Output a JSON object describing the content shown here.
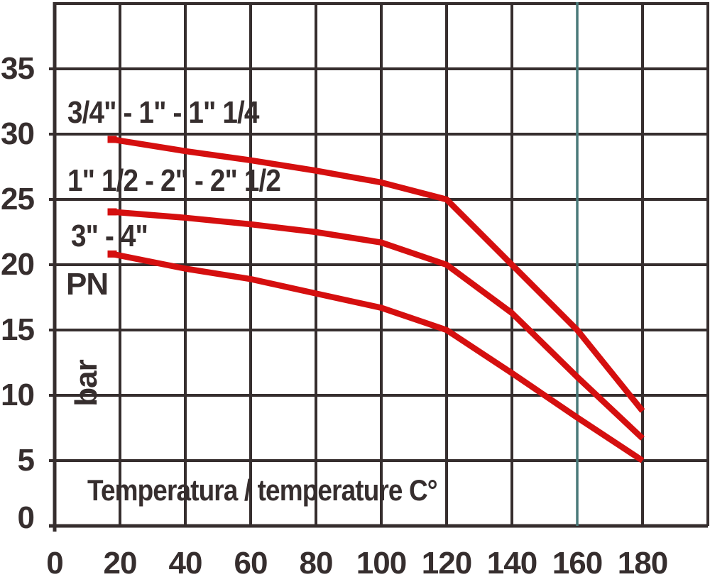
{
  "chart_data": {
    "type": "line",
    "title": "",
    "xlabel": "Temperatura / temperature C°",
    "ylabel": "PN",
    "y_unit": "bar",
    "xlim": [
      0,
      200
    ],
    "ylim": [
      0,
      40
    ],
    "x_ticks": [
      0,
      20,
      40,
      60,
      80,
      100,
      120,
      140,
      160,
      180
    ],
    "y_ticks": [
      0,
      5,
      10,
      15,
      20,
      25,
      30,
      35
    ],
    "grid": true,
    "legend_position": "inline-left-of-curves",
    "highlight_gridline": {
      "axis": "x",
      "value": 160,
      "color": "#4a7a7a"
    },
    "line_color": "#d50f0f",
    "grid_color": "#362e2e",
    "text_color": "#362e2e",
    "background": "#ffffff",
    "x": [
      20,
      40,
      60,
      80,
      100,
      120,
      140,
      160,
      180
    ],
    "series": [
      {
        "name": "3/4\" - 1\" - 1\" 1/4",
        "values": [
          29.5,
          28.7,
          28.0,
          27.2,
          26.3,
          25.0,
          20.0,
          15.0,
          8.8
        ]
      },
      {
        "name": "1\" 1/2 - 2\" - 2\" 1/2",
        "values": [
          24.0,
          23.6,
          23.1,
          22.5,
          21.7,
          20.0,
          16.3,
          11.4,
          6.7
        ]
      },
      {
        "name": "3\" - 4\"",
        "values": [
          20.7,
          19.7,
          18.9,
          17.8,
          16.7,
          15.0,
          11.7,
          8.3,
          5.0
        ]
      }
    ]
  }
}
